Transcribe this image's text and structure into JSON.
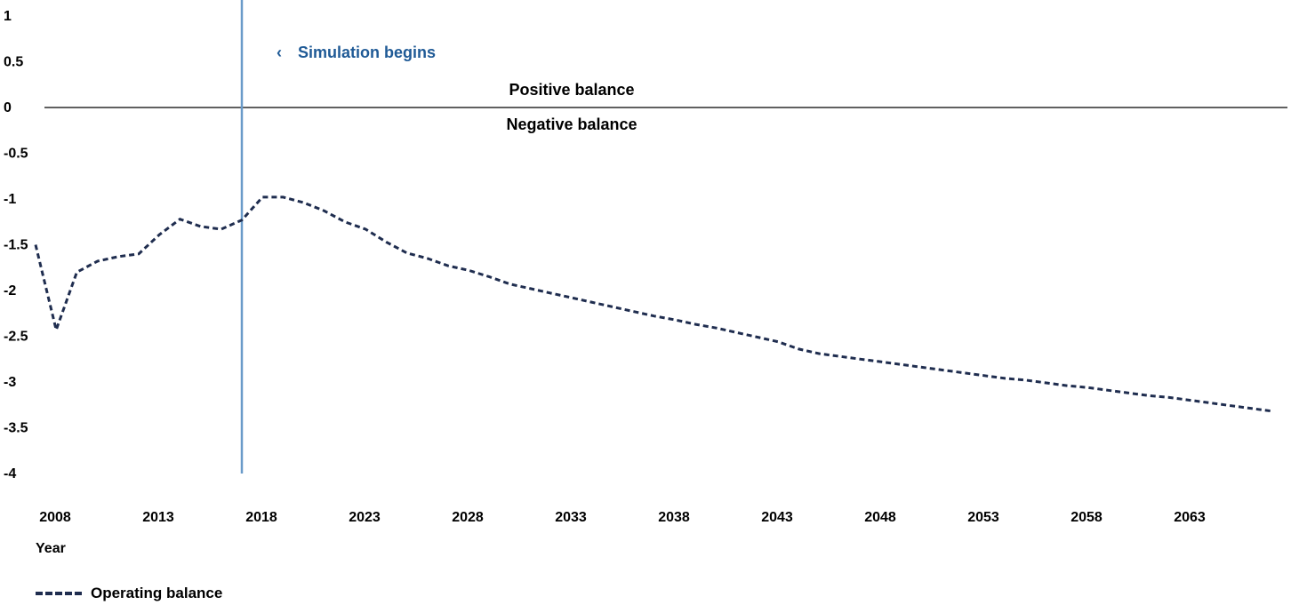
{
  "colors": {
    "series": "#1f2d4f",
    "simulation_line": "#6a9bc9",
    "simulation_text": "#1f5a96",
    "zero_line": "#000000"
  },
  "chart_data": {
    "type": "line",
    "xlabel": "Year",
    "ylabel": "",
    "ylim": [
      -4,
      1
    ],
    "xlim": [
      2008,
      2068
    ],
    "yticks": [
      1,
      0.5,
      0,
      -0.5,
      -1,
      -1.5,
      -2,
      -2.5,
      -3,
      -3.5,
      -4
    ],
    "xticks": [
      2008,
      2013,
      2018,
      2023,
      2028,
      2033,
      2038,
      2043,
      2048,
      2053,
      2058,
      2063
    ],
    "grid": false,
    "legend_position": "bottom-left",
    "annotations": {
      "simulation_year": 2018,
      "simulation_label": "Simulation begins",
      "simulation_marker": "‹",
      "positive_label": "Positive balance",
      "negative_label": "Negative balance"
    },
    "series": [
      {
        "name": "Operating balance",
        "style": "dashed",
        "x": [
          2008,
          2009,
          2010,
          2011,
          2012,
          2013,
          2014,
          2015,
          2016,
          2017,
          2018,
          2019,
          2020,
          2021,
          2022,
          2023,
          2024,
          2025,
          2026,
          2027,
          2028,
          2029,
          2030,
          2031,
          2032,
          2033,
          2034,
          2035,
          2036,
          2037,
          2038,
          2039,
          2040,
          2041,
          2042,
          2043,
          2044,
          2045,
          2046,
          2047,
          2048,
          2049,
          2050,
          2051,
          2052,
          2053,
          2054,
          2055,
          2056,
          2057,
          2058,
          2059,
          2060,
          2061,
          2062,
          2063,
          2064,
          2065,
          2066,
          2067,
          2068
        ],
        "values": [
          -1.5,
          -2.43,
          -1.8,
          -1.68,
          -1.63,
          -1.6,
          -1.39,
          -1.22,
          -1.3,
          -1.33,
          -1.23,
          -0.98,
          -0.98,
          -1.04,
          -1.13,
          -1.25,
          -1.33,
          -1.47,
          -1.59,
          -1.65,
          -1.73,
          -1.78,
          -1.85,
          -1.93,
          -1.98,
          -2.03,
          -2.08,
          -2.13,
          -2.18,
          -2.23,
          -2.28,
          -2.32,
          -2.37,
          -2.41,
          -2.46,
          -2.51,
          -2.56,
          -2.64,
          -2.69,
          -2.72,
          -2.75,
          -2.78,
          -2.81,
          -2.84,
          -2.87,
          -2.9,
          -2.93,
          -2.96,
          -2.98,
          -3.01,
          -3.04,
          -3.06,
          -3.09,
          -3.12,
          -3.15,
          -3.17,
          -3.2,
          -3.23,
          -3.26,
          -3.29,
          -3.32
        ]
      }
    ]
  }
}
